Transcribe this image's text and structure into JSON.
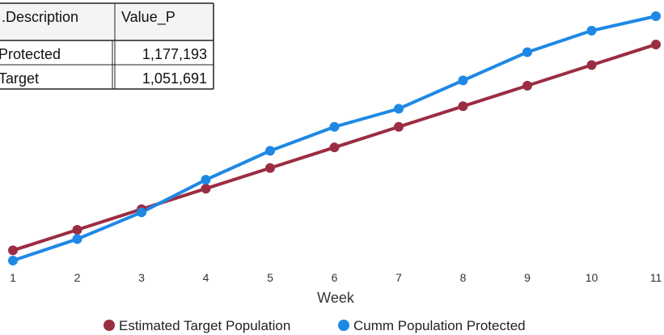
{
  "table": {
    "headers": [
      ".Description",
      "Value_P"
    ],
    "rows": [
      [
        "Protected",
        "1,177,193"
      ],
      [
        "Target",
        "1,051,691"
      ]
    ]
  },
  "chart_data": {
    "type": "line",
    "xlabel": "Week",
    "ylabel": "",
    "x": [
      1,
      2,
      3,
      4,
      5,
      6,
      7,
      8,
      9,
      10,
      11
    ],
    "ylim": [
      0,
      100
    ],
    "grid": false,
    "legend_position": "bottom",
    "series": [
      {
        "name": "Estimated Target Population",
        "color": "#9b2d43",
        "values": [
          4.5,
          13.6,
          22.7,
          31.8,
          40.9,
          50.0,
          59.1,
          68.2,
          77.3,
          86.4,
          95.5
        ]
      },
      {
        "name": "Cumm Population Protected",
        "color": "#1e88e5",
        "values": [
          0.0,
          9.5,
          21.3,
          35.7,
          48.5,
          59.1,
          67.1,
          79.6,
          92.1,
          101.6,
          108.0
        ]
      }
    ]
  }
}
